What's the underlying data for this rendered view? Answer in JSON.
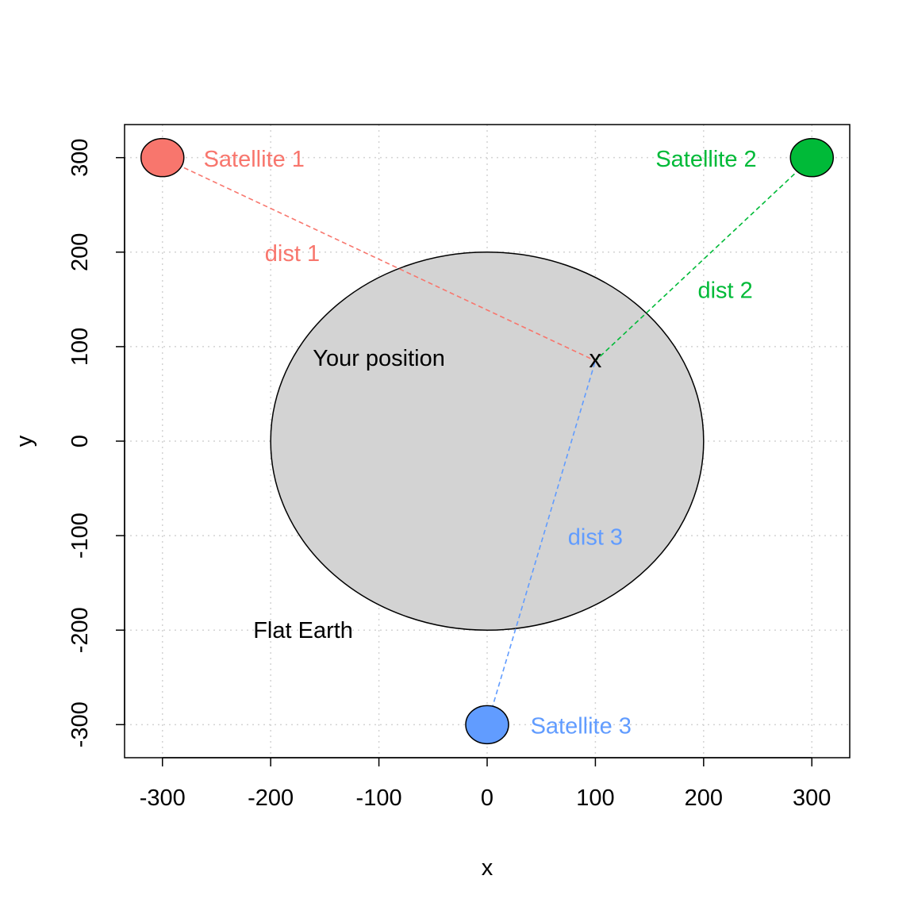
{
  "chart_data": {
    "type": "scatter",
    "xlabel": "x",
    "ylabel": "y",
    "xlim": [
      -335,
      335
    ],
    "ylim": [
      -335,
      335
    ],
    "grid": true,
    "xticks": [
      -300,
      -200,
      -100,
      0,
      100,
      200,
      300
    ],
    "yticks": [
      -300,
      -200,
      -100,
      0,
      100,
      200,
      300
    ],
    "xtick_labels": [
      "-300",
      "-200",
      "-100",
      "0",
      "100",
      "200",
      "300"
    ],
    "ytick_labels": [
      "-300",
      "-200",
      "-100",
      "0",
      "100",
      "200",
      "300"
    ],
    "earth": {
      "label": "Flat Earth",
      "center": [
        0,
        0
      ],
      "radius": 200,
      "fill": "#d3d3d3",
      "label_at": [
        -170,
        -202
      ]
    },
    "position": {
      "label": "Your position",
      "marker": "x",
      "x": 100,
      "y": 85,
      "label_at": [
        -100,
        86
      ]
    },
    "satellites": [
      {
        "name": "Satellite 1",
        "x": -300,
        "y": 300,
        "color": "#f8766d",
        "dist_label": "dist 1",
        "dist_label_at": [
          -180,
          197
        ],
        "name_label_at": [
          -262,
          297
        ],
        "name_anchor": "start"
      },
      {
        "name": "Satellite 2",
        "x": 300,
        "y": 300,
        "color": "#00ba38",
        "dist_label": "dist 2",
        "dist_label_at": [
          220,
          158
        ],
        "name_label_at": [
          249,
          297
        ],
        "name_anchor": "end"
      },
      {
        "name": "Satellite 3",
        "x": 0,
        "y": -300,
        "color": "#619cff",
        "dist_label": "dist 3",
        "dist_label_at": [
          100,
          -103
        ],
        "name_label_at": [
          40,
          -303
        ],
        "name_anchor": "start"
      }
    ]
  }
}
